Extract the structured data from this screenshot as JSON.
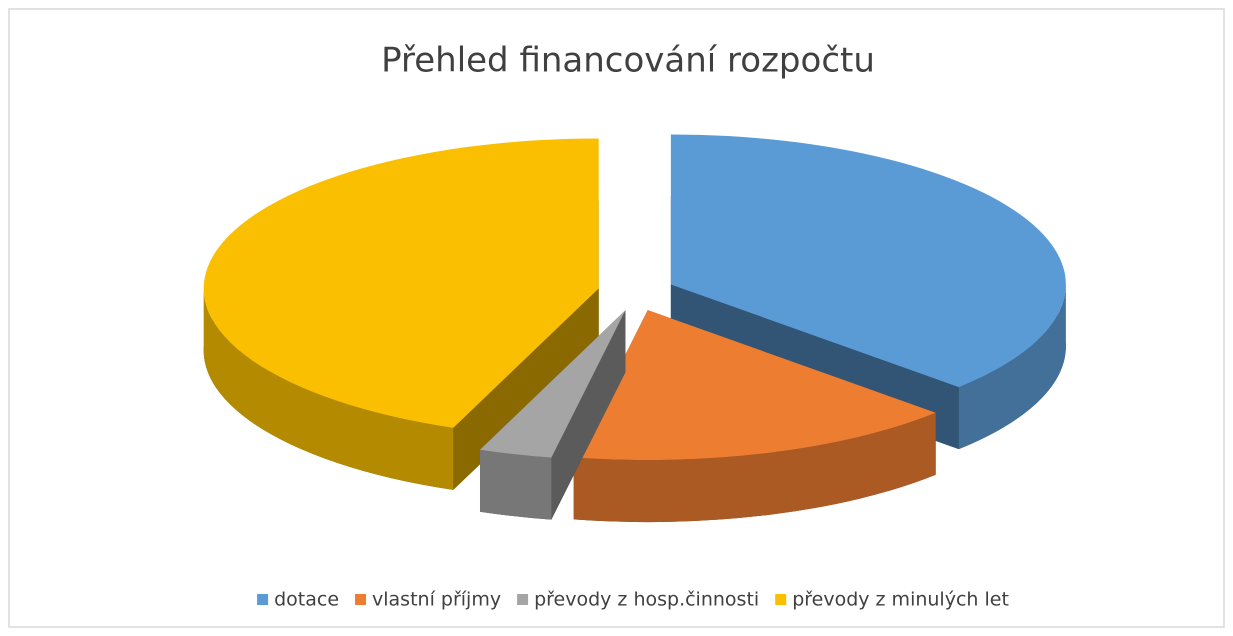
{
  "chart_data": {
    "type": "pie",
    "title": "Přehled financování rozpočtu",
    "categories": [
      "dotace",
      "vlastní příjmy",
      "převody z hosp.činnosti",
      "převody z minulých let"
    ],
    "values": [
      37,
      16,
      3,
      44
    ],
    "colors": [
      "#5b9bd5",
      "#ed7d31",
      "#a5a5a5",
      "#f9bf00"
    ],
    "legend": "bottom"
  }
}
